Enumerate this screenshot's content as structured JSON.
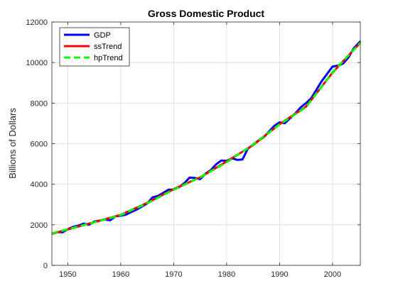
{
  "chart_data": {
    "type": "line",
    "title": "Gross Domestic Product",
    "xlabel": "",
    "ylabel": "Billions of Dollars",
    "xlim": [
      1947,
      2005.25
    ],
    "ylim": [
      0,
      12000
    ],
    "xticks": [
      1950,
      1960,
      1970,
      1980,
      1990,
      2000
    ],
    "yticks": [
      0,
      2000,
      4000,
      6000,
      8000,
      10000,
      12000
    ],
    "grid": true,
    "legend_position": "top-left",
    "series": [
      {
        "name": "GDP",
        "color": "#0000ff",
        "style": "solid",
        "x": [
          1947,
          1948,
          1949,
          1950,
          1951,
          1952,
          1953,
          1954,
          1955,
          1956,
          1957,
          1958,
          1959,
          1960,
          1961,
          1962,
          1963,
          1964,
          1965,
          1966,
          1967,
          1968,
          1969,
          1970,
          1971,
          1972,
          1973,
          1974,
          1975,
          1976,
          1977,
          1978,
          1979,
          1980,
          1981,
          1982,
          1983,
          1984,
          1985,
          1986,
          1987,
          1988,
          1989,
          1990,
          1991,
          1992,
          1993,
          1994,
          1995,
          1996,
          1997,
          1998,
          1999,
          2000,
          2001,
          2002,
          2003,
          2004,
          2005.25
        ],
        "y": [
          1560,
          1640,
          1630,
          1780,
          1900,
          1960,
          2060,
          2000,
          2160,
          2210,
          2260,
          2220,
          2420,
          2450,
          2500,
          2630,
          2750,
          2900,
          3050,
          3350,
          3420,
          3570,
          3730,
          3740,
          3850,
          4050,
          4330,
          4310,
          4250,
          4520,
          4690,
          4980,
          5170,
          5150,
          5280,
          5200,
          5220,
          5750,
          5960,
          6150,
          6320,
          6600,
          6880,
          7050,
          7010,
          7260,
          7500,
          7800,
          8000,
          8250,
          8680,
          9100,
          9450,
          9800,
          9850,
          9950,
          10250,
          10700,
          11050
        ]
      },
      {
        "name": "ssTrend",
        "color": "#ff0000",
        "style": "solid",
        "x": [
          1947,
          1950,
          1955,
          1960,
          1965,
          1970,
          1975,
          1980,
          1985,
          1990,
          1995,
          2000,
          2005.25
        ],
        "y": [
          1560,
          1770,
          2130,
          2490,
          3080,
          3760,
          4340,
          5120,
          5930,
          6960,
          7830,
          9500,
          10980
        ]
      },
      {
        "name": "hpTrend",
        "color": "#00ff00",
        "style": "dashed",
        "x": [
          1947,
          1950,
          1955,
          1960,
          1965,
          1970,
          1975,
          1980,
          1985,
          1990,
          1995,
          2000,
          2005.25
        ],
        "y": [
          1580,
          1780,
          2120,
          2480,
          3060,
          3730,
          4340,
          5080,
          5960,
          6950,
          7800,
          9520,
          10980
        ]
      }
    ]
  }
}
